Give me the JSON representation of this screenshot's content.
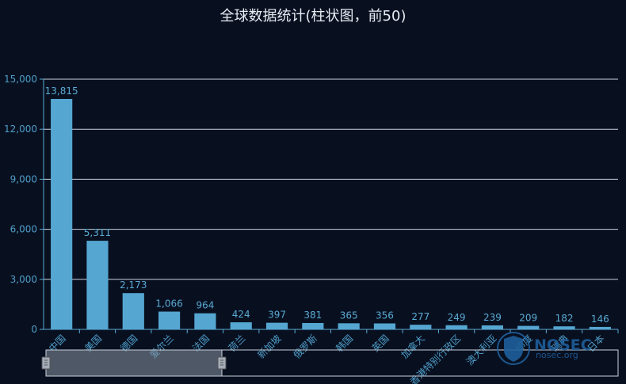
{
  "title": "全球数据统计(柱状图，前50)",
  "watermark": {
    "brand": "NOSEC",
    "site": "nosec.org"
  },
  "chart_data": {
    "type": "bar",
    "categories": [
      "中国",
      "美国",
      "德国",
      "爱尔兰",
      "法国",
      "荷兰",
      "新加坡",
      "俄罗斯",
      "韩国",
      "英国",
      "加拿大",
      "香港特别行政区",
      "澳大利亚",
      "印度",
      "瑞典",
      "日本"
    ],
    "values": [
      13815,
      5311,
      2173,
      1066,
      964,
      424,
      397,
      381,
      365,
      356,
      277,
      249,
      239,
      209,
      182,
      146
    ],
    "value_labels": [
      "13,815",
      "5,311",
      "2,173",
      "1,066",
      "964",
      "424",
      "397",
      "381",
      "365",
      "356",
      "277",
      "249",
      "239",
      "209",
      "182",
      "146"
    ],
    "y_ticks": [
      "0",
      "3,000",
      "6,000",
      "9,000",
      "12,000",
      "15,000"
    ],
    "ylim": [
      0,
      15000
    ],
    "xlabel": "",
    "ylabel": "",
    "grid": true,
    "colors": {
      "bar": "#55a7d2",
      "label": "#5aaad4",
      "background": "#081020"
    }
  }
}
